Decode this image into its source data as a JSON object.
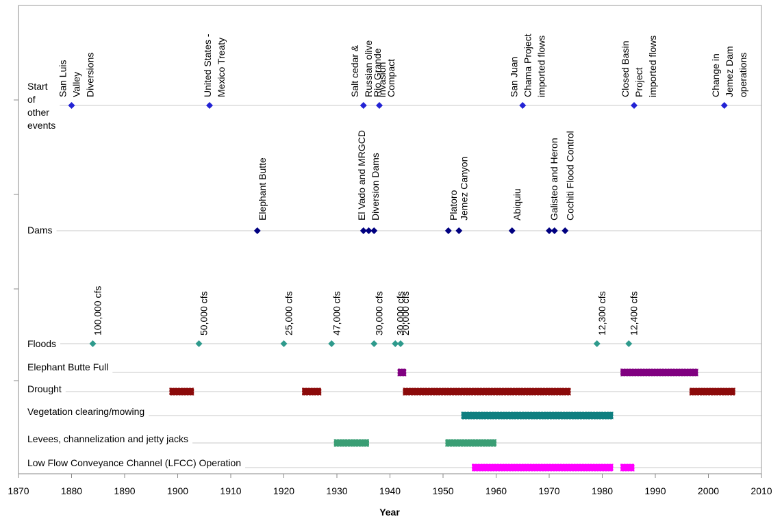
{
  "chart_data": {
    "type": "timeline",
    "xlabel": "Year",
    "xlim": [
      1870,
      2010
    ],
    "xticks": [
      1870,
      1880,
      1890,
      1900,
      1910,
      1920,
      1930,
      1940,
      1950,
      1960,
      1970,
      1980,
      1990,
      2000,
      2010
    ],
    "rows": [
      {
        "name": [
          "Start",
          "of",
          "other",
          "events"
        ],
        "color": "#2323d4",
        "x": [
          1880,
          1906,
          1935,
          1938,
          1965,
          1986,
          2003
        ],
        "labels": [
          [
            "San Luis",
            "Valley",
            "Diversions"
          ],
          [
            "United States -",
            "Mexico Treaty"
          ],
          [
            "Salt cedar &",
            "Russian olive",
            "invasion"
          ],
          [
            "Rio Grande",
            "Compact"
          ],
          [
            "San Juan",
            "Chama Project",
            "imported flows"
          ],
          [
            "Closed Basin",
            "Project",
            "imported flows"
          ],
          [
            "Change in",
            "Jemez Dam",
            "operations"
          ]
        ]
      },
      {
        "name": [
          "Dams"
        ],
        "color": "#000080",
        "x": [
          1915,
          1935,
          1936,
          1937,
          1951,
          1953,
          1963,
          1970,
          1971,
          1973
        ],
        "labels": [
          [
            "Elephant Butte"
          ],
          [
            "El Vado and MRGCD",
            "Diversion Dams"
          ],
          null,
          null,
          [
            "Platoro"
          ],
          [
            "Jemez Canyon"
          ],
          [
            "Abiquiu"
          ],
          [
            "Galisteo and Heron"
          ],
          null,
          [
            "Cochiti Flood  Control"
          ]
        ]
      },
      {
        "name": [
          "Floods"
        ],
        "color": "#2e9a8c",
        "x": [
          1884,
          1904,
          1920,
          1929,
          1937,
          1941,
          1942,
          1979,
          1985
        ],
        "labels": [
          [
            "100,000 cfs"
          ],
          [
            "50,000 cfs"
          ],
          [
            "25,000 cfs"
          ],
          [
            "47,000 cfs"
          ],
          [
            "30,000 cfs"
          ],
          [
            "30,000 cfs"
          ],
          [
            "20,000 cfs"
          ],
          [
            "12,300 cfs"
          ],
          [
            "12,400 cfs"
          ]
        ]
      },
      {
        "name": [
          "Elephant Butte Full"
        ],
        "color": "#800080",
        "ranges": [
          [
            1941.5,
            1943
          ],
          [
            1983.5,
            1998
          ]
        ]
      },
      {
        "name": [
          "Drought"
        ],
        "color": "#8b0a0a",
        "ranges": [
          [
            1898.5,
            1903
          ],
          [
            1923.5,
            1927
          ],
          [
            1942.5,
            1974
          ],
          [
            1996.5,
            2005
          ]
        ]
      },
      {
        "name": [
          "Vegetation clearing/mowing"
        ],
        "color": "#0f7f80",
        "ranges": [
          [
            1953.5,
            1982
          ]
        ]
      },
      {
        "name": [
          "Levees, channelization and jetty jacks"
        ],
        "color": "#3a9e74",
        "ranges": [
          [
            1929.5,
            1936
          ],
          [
            1950.5,
            1960
          ]
        ]
      },
      {
        "name": [
          "Low Flow Conveyance Channel (LFCC) Operation"
        ],
        "color": "#ff00ff",
        "ranges": [
          [
            1955.5,
            1982
          ],
          [
            1983.5,
            1986
          ]
        ]
      }
    ]
  }
}
